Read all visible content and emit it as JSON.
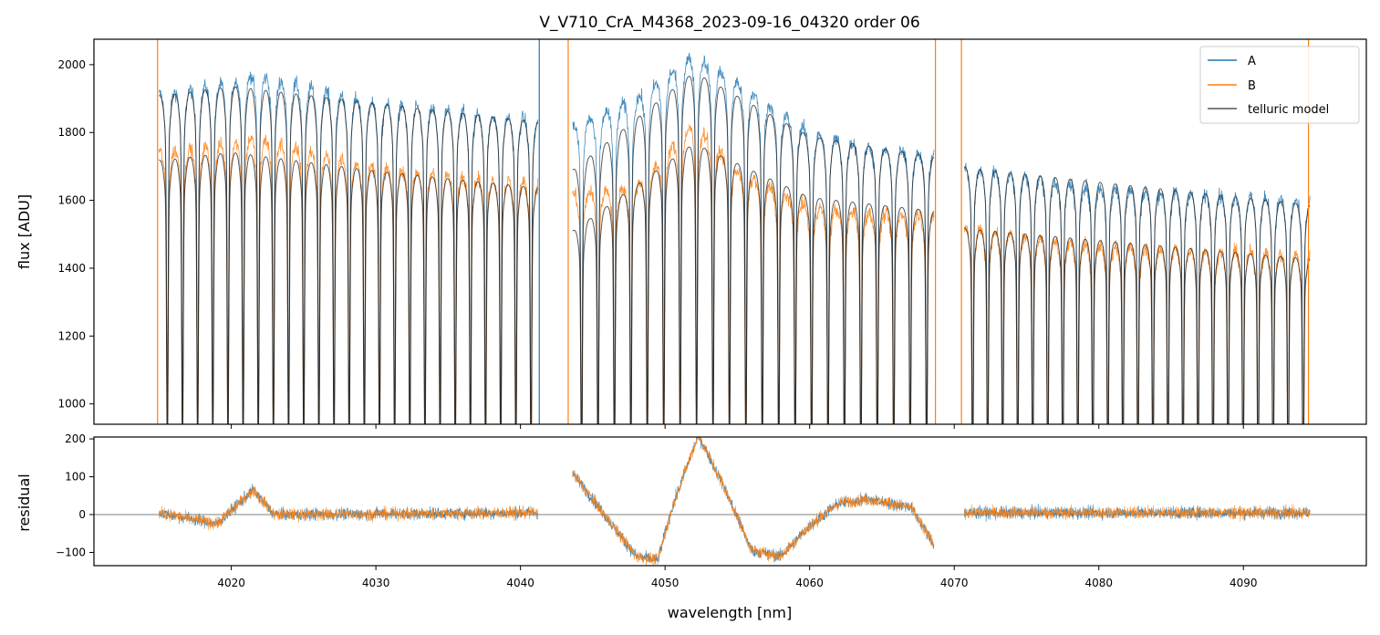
{
  "chart_data": [
    {
      "type": "line",
      "panel": "spectrum",
      "title": "V_V710_CrA_M4368_2023-09-16_04320  order 06",
      "xlabel": "",
      "ylabel": "flux [ADU]",
      "xlim": [
        4010.5,
        4098.5
      ],
      "ylim": [
        940,
        2075
      ],
      "yticks": [
        1000,
        1200,
        1400,
        1600,
        1800,
        2000
      ],
      "xticks": [
        4020,
        4030,
        4040,
        4050,
        4060,
        4070,
        4080,
        4090
      ],
      "legend_position": "top-right",
      "segments": [
        {
          "x_start": 4015.0,
          "x_end": 4041.2,
          "lines": 25
        },
        {
          "x_start": 4043.6,
          "x_end": 4068.6,
          "lines": 22
        },
        {
          "x_start": 4070.7,
          "x_end": 4094.6,
          "lines": 23
        }
      ],
      "series": [
        {
          "name": "A",
          "color": "#1f77b4",
          "continuum_points": [
            [
              4015.0,
              1915
            ],
            [
              4020,
              1950
            ],
            [
              4021.5,
              1975
            ],
            [
              4030,
              1890
            ],
            [
              4041.2,
              1840
            ],
            [
              4043.6,
              1820
            ],
            [
              4048,
              1900
            ],
            [
              4052,
              2030
            ],
            [
              4055,
              1950
            ],
            [
              4060,
              1800
            ],
            [
              4065,
              1750
            ],
            [
              4068.6,
              1740
            ],
            [
              4070.7,
              1700
            ],
            [
              4080,
              1640
            ],
            [
              4094.6,
              1600
            ]
          ]
        },
        {
          "name": "B",
          "color": "#ff7f0e",
          "continuum_points": [
            [
              4015.0,
              1745
            ],
            [
              4020,
              1770
            ],
            [
              4021.5,
              1790
            ],
            [
              4030,
              1700
            ],
            [
              4041.2,
              1650
            ],
            [
              4043.6,
              1620
            ],
            [
              4048,
              1640
            ],
            [
              4052,
              1830
            ],
            [
              4055,
              1690
            ],
            [
              4060,
              1580
            ],
            [
              4065,
              1560
            ],
            [
              4068.6,
              1560
            ],
            [
              4070.7,
              1520
            ],
            [
              4080,
              1470
            ],
            [
              4094.6,
              1440
            ]
          ]
        },
        {
          "name": "telluric model",
          "color": "#555555",
          "continuum_points_A": [
            [
              4015.0,
              1910
            ],
            [
              4020,
              1940
            ],
            [
              4030,
              1890
            ],
            [
              4041.2,
              1835
            ],
            [
              4043.6,
              1690
            ],
            [
              4052,
              1980
            ],
            [
              4060,
              1790
            ],
            [
              4068.6,
              1730
            ],
            [
              4070.7,
              1700
            ],
            [
              4094.6,
              1590
            ]
          ],
          "continuum_points_B": [
            [
              4015.0,
              1720
            ],
            [
              4020,
              1745
            ],
            [
              4030,
              1690
            ],
            [
              4041.2,
              1640
            ],
            [
              4043.6,
              1510
            ],
            [
              4052,
              1770
            ],
            [
              4060,
              1610
            ],
            [
              4068.6,
              1570
            ],
            [
              4070.7,
              1520
            ],
            [
              4094.6,
              1430
            ]
          ]
        }
      ],
      "vertical_lines": [
        {
          "x": 4014.9,
          "color": "#ff7f0e"
        },
        {
          "x": 4041.3,
          "color": "#1f77b4"
        },
        {
          "x": 4043.3,
          "color": "#ff7f0e"
        },
        {
          "x": 4068.7,
          "color": "#ff7f0e"
        },
        {
          "x": 4070.5,
          "color": "#ff7f0e"
        },
        {
          "x": 4094.5,
          "color": "#ff7f0e"
        }
      ]
    },
    {
      "type": "line",
      "panel": "residual",
      "title": "",
      "xlabel": "wavelength [nm]",
      "ylabel": "residual",
      "xlim": [
        4010.5,
        4098.5
      ],
      "ylim": [
        -135,
        205
      ],
      "yticks": [
        -100,
        0,
        100,
        200
      ],
      "xticks": [
        4020,
        4030,
        4040,
        4050,
        4060,
        4070,
        4080,
        4090
      ],
      "hline": 0,
      "series": [
        {
          "name": "A",
          "color": "#1f77b4"
        },
        {
          "name": "B",
          "color": "#ff7f0e"
        }
      ],
      "residual_trend": [
        [
          4015,
          5
        ],
        [
          4019,
          -25
        ],
        [
          4021.5,
          65
        ],
        [
          4023,
          0
        ],
        [
          4041.2,
          5
        ],
        [
          4043.6,
          110
        ],
        [
          4045,
          40
        ],
        [
          4048,
          -110
        ],
        [
          4049.5,
          -120
        ],
        [
          4050.5,
          20
        ],
        [
          4052.3,
          210
        ],
        [
          4054,
          80
        ],
        [
          4056,
          -95
        ],
        [
          4058,
          -110
        ],
        [
          4060,
          -30
        ],
        [
          4062,
          30
        ],
        [
          4064,
          40
        ],
        [
          4067,
          20
        ],
        [
          4068.6,
          -80
        ],
        [
          4070.7,
          5
        ],
        [
          4094.6,
          5
        ]
      ]
    }
  ],
  "legend": {
    "entries": [
      {
        "label": "A",
        "color": "#1f77b4"
      },
      {
        "label": "B",
        "color": "#ff7f0e"
      },
      {
        "label": "telluric model",
        "color": "#555555"
      }
    ]
  }
}
